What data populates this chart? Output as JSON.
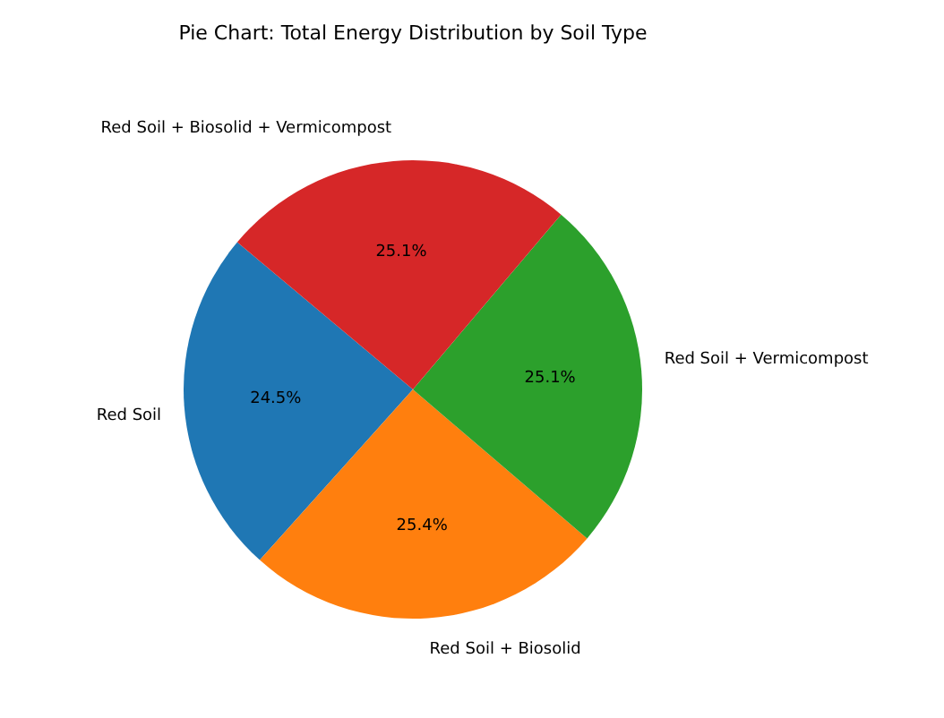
{
  "chart_data": {
    "type": "pie",
    "title": "Pie Chart: Total Energy Distribution by Soil Type",
    "categories": [
      "Red Soil",
      "Red Soil + Biosolid",
      "Red Soil + Vermicompost",
      "Red Soil + Biosolid + Vermicompost"
    ],
    "values": [
      24.5,
      25.4,
      25.1,
      25.1
    ],
    "value_labels": [
      "24.5%",
      "25.4%",
      "25.1%",
      "25.1%"
    ],
    "colors": [
      "#1f77b4",
      "#ff7f0e",
      "#2ca02c",
      "#d62728"
    ]
  }
}
